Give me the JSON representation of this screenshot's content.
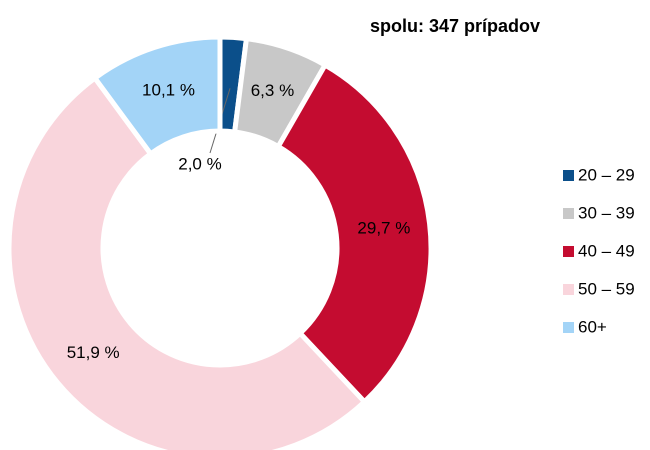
{
  "chart_data": {
    "type": "donut",
    "title": "spolu: 347 prípadov",
    "categories": [
      "20 – 29",
      "30 – 39",
      "40 – 49",
      "50 – 59",
      "60+"
    ],
    "values": [
      2.0,
      6.3,
      29.7,
      51.9,
      10.1
    ],
    "value_labels": [
      "2,0 %",
      "6,3 %",
      "29,7 %",
      "51,9 %",
      "10,1 %"
    ],
    "colors": [
      "#0b4f8a",
      "#c8c8c8",
      "#c40c30",
      "#f9d5dc",
      "#a3d4f7"
    ],
    "legend": "right"
  }
}
